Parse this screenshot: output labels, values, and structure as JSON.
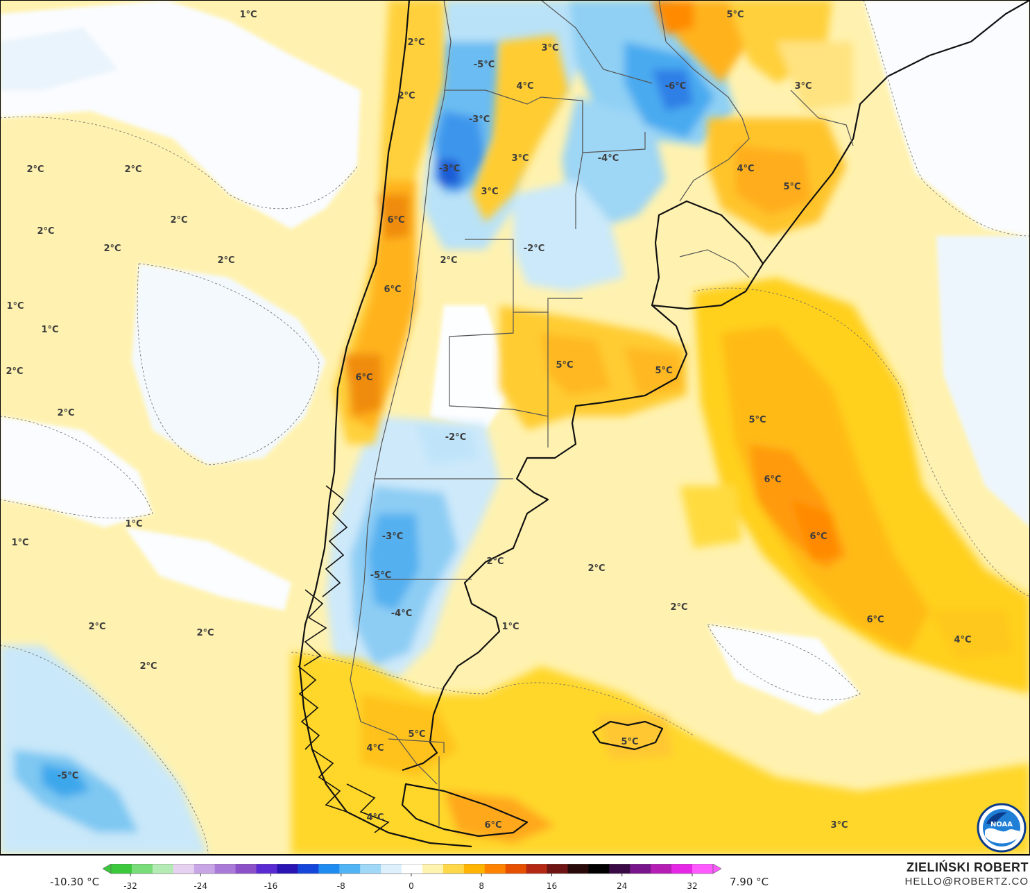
{
  "map": {
    "labels": [
      "1°C",
      "2°C",
      "5°C",
      "-5°C",
      "3°C",
      "4°C",
      "-6°C",
      "3°C",
      "2°C",
      "-3°C",
      "3°C",
      "-4°C",
      "4°C",
      "2°C",
      "2°C",
      "-3°C",
      "3°C",
      "5°C",
      "2°C",
      "6°C",
      "2°C",
      "-2°C",
      "2°C",
      "2°C",
      "2°C",
      "6°C",
      "1°C",
      "1°C",
      "2°C",
      "5°C",
      "5°C",
      "6°C",
      "2°C",
      "5°C",
      "-2°C",
      "6°C",
      "6°C",
      "1°C",
      "-3°C",
      "1°C",
      "2°C",
      "-5°C",
      "2°C",
      "-4°C",
      "2°C",
      "1°C",
      "2°C",
      "6°C",
      "4°C",
      "2°C",
      "2°C",
      "5°C",
      "4°C",
      "-5°C",
      "5°C",
      "4°C",
      "6°C",
      "3°C"
    ]
  },
  "scale": {
    "min_label": "-10.30 °C",
    "max_label": "7.90 °C",
    "ticks": [
      "-32",
      "-24",
      "-16",
      "-8",
      "0",
      "8",
      "16",
      "24",
      "32"
    ],
    "colors": [
      "#3cc83c",
      "#78dc78",
      "#b4eab4",
      "#e6d2f0",
      "#c8a6e6",
      "#aa7ad8",
      "#8c50c8",
      "#5a2ad2",
      "#2a14b4",
      "#1446dc",
      "#1e8cf0",
      "#50b4f5",
      "#a0d8f8",
      "#ddf0fb",
      "#ffffff",
      "#fff3b0",
      "#ffd84a",
      "#ffb400",
      "#ff8200",
      "#e65000",
      "#b42814",
      "#6e1414",
      "#280a0a",
      "#000000",
      "#3a0a46",
      "#78148c",
      "#b41eb4",
      "#e628e6",
      "#ff5aff"
    ]
  },
  "credit": {
    "name": "ZIELIŃSKI ROBERT",
    "email": "HELLO@ROBERTZ.CO"
  },
  "logo": {
    "text": "NOAA"
  }
}
